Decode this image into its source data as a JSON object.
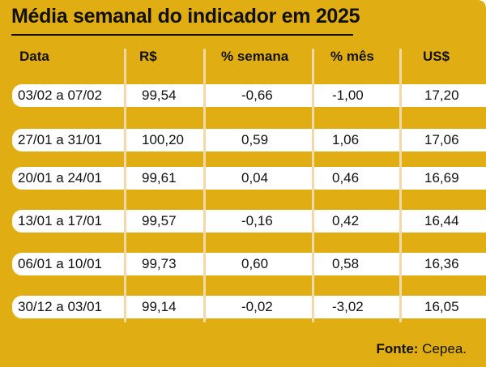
{
  "chart_data": {
    "type": "table",
    "title": "Média semanal do indicador em 2025",
    "columns": [
      "Data",
      "R$",
      "% semana",
      "% mês",
      "US$"
    ],
    "rows": [
      [
        "03/02 a 07/02",
        "99,54",
        "-0,66",
        "-1,00",
        "17,20"
      ],
      [
        "27/01 a 31/01",
        "100,20",
        "0,59",
        "1,06",
        "17,06"
      ],
      [
        "20/01 a 24/01",
        "99,61",
        "0,04",
        "0,46",
        "16,69"
      ],
      [
        "13/01 a 17/01",
        "99,57",
        "-0,16",
        "0,42",
        "16,44"
      ],
      [
        "06/01 a 10/01",
        "99,73",
        "0,60",
        "0,58",
        "16,36"
      ],
      [
        "30/12 a 03/01",
        "99,14",
        "-0,02",
        "-3,02",
        "16,05"
      ]
    ]
  },
  "source": {
    "label": "Fonte:",
    "text": "Cepea."
  },
  "colors": {
    "background": "#e0ad12",
    "row": "#ffffff",
    "separator": "#f3d9a8",
    "text": "#111111"
  }
}
